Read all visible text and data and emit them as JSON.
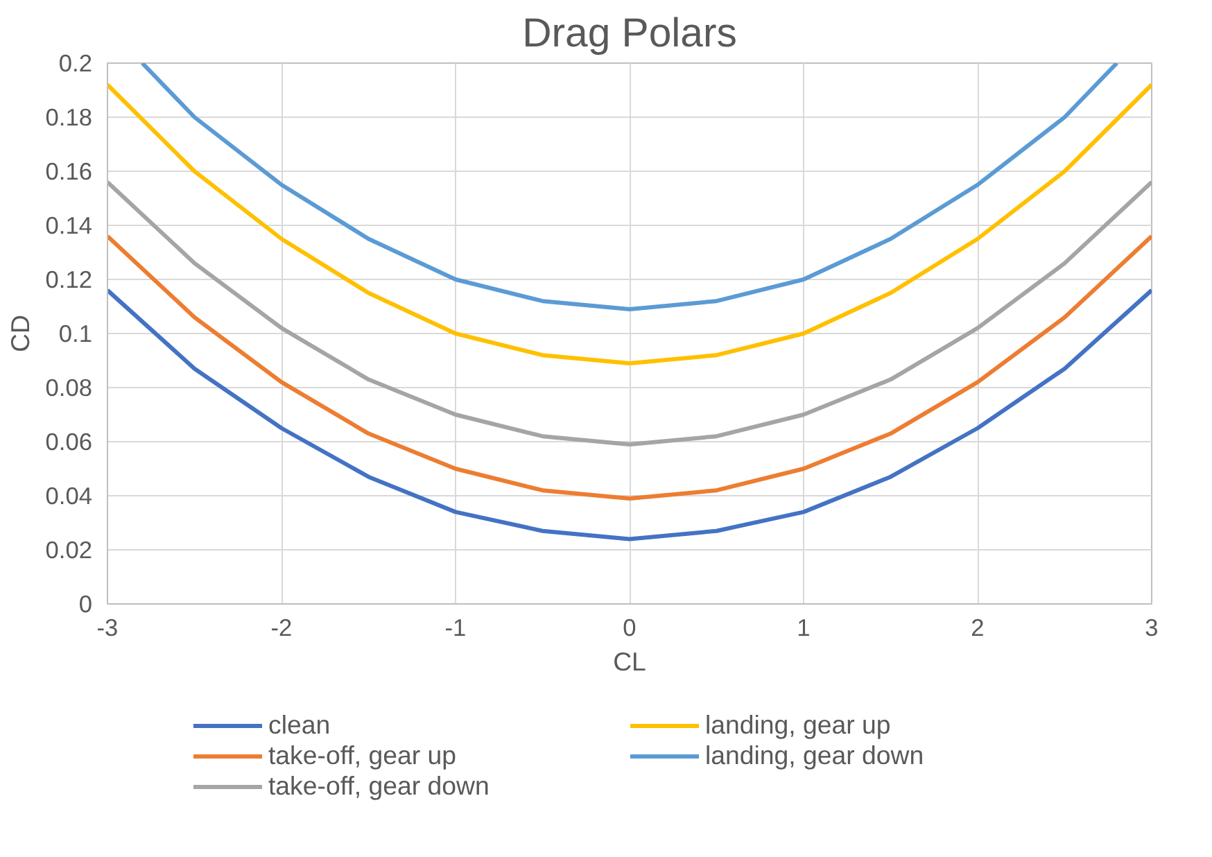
{
  "chart_data": {
    "type": "line",
    "title": "Drag Polars",
    "xlabel": "CL",
    "ylabel": "CD",
    "x": [
      -3,
      -2.5,
      -2,
      -1.5,
      -1,
      -0.5,
      0,
      0.5,
      1,
      1.5,
      2,
      2.5,
      3
    ],
    "series": [
      {
        "name": "clean",
        "color": "#4472c4",
        "values": [
          0.116,
          0.087,
          0.065,
          0.047,
          0.034,
          0.027,
          0.024,
          0.027,
          0.034,
          0.047,
          0.065,
          0.087,
          0.116
        ]
      },
      {
        "name": "take-off, gear up",
        "color": "#ed7d31",
        "values": [
          0.136,
          0.106,
          0.082,
          0.063,
          0.05,
          0.042,
          0.039,
          0.042,
          0.05,
          0.063,
          0.082,
          0.106,
          0.136
        ]
      },
      {
        "name": "take-off, gear down",
        "color": "#a5a5a5",
        "values": [
          0.156,
          0.126,
          0.102,
          0.083,
          0.07,
          0.062,
          0.059,
          0.062,
          0.07,
          0.083,
          0.102,
          0.126,
          0.156
        ]
      },
      {
        "name": "landing, gear up",
        "color": "#ffc000",
        "values": [
          0.192,
          0.16,
          0.135,
          0.115,
          0.1,
          0.092,
          0.089,
          0.092,
          0.1,
          0.115,
          0.135,
          0.16,
          0.192
        ]
      },
      {
        "name": "landing, gear down",
        "color": "#5b9bd5",
        "x": [
          -2.8,
          -2.5,
          -2,
          -1.5,
          -1,
          -0.5,
          0,
          0.5,
          1,
          1.5,
          2,
          2.5,
          2.8
        ],
        "values": [
          0.2,
          0.18,
          0.155,
          0.135,
          0.12,
          0.112,
          0.109,
          0.112,
          0.12,
          0.135,
          0.155,
          0.18,
          0.2
        ]
      }
    ],
    "xlim": [
      -3,
      3
    ],
    "xticks": [
      -3,
      -2,
      -1,
      0,
      1,
      2,
      3
    ],
    "ylim": [
      0,
      0.2
    ],
    "yticks": [
      0,
      0.02,
      0.04,
      0.06,
      0.08,
      0.1,
      0.12,
      0.14,
      0.16,
      0.18,
      0.2
    ],
    "grid": true,
    "legend": "bottom",
    "marker": "none",
    "line_style": "solid"
  }
}
